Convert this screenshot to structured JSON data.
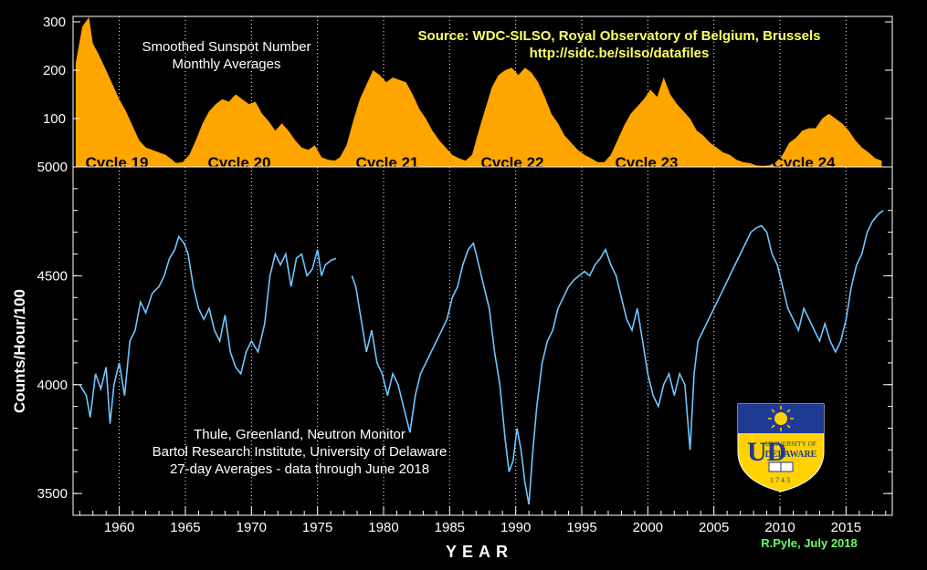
{
  "chart_data": [
    {
      "type": "area",
      "panel": "top",
      "title_lines": [
        "Smoothed Sunspot Number",
        "Monthly Averages"
      ],
      "source_lines": [
        "Source: WDC-SILSO, Royal Observatory of Belgium, Brussels",
        "http://sidc.be/silso/datafiles"
      ],
      "ylim": [
        0,
        300
      ],
      "yticks": [
        "300",
        "200",
        "100"
      ],
      "color": "#ffa500",
      "cycles": [
        "Cycle 19",
        "Cycle 20",
        "Cycle 21",
        "Cycle 22",
        "Cycle 23",
        "Cycle 24"
      ],
      "x": [
        1956.7,
        1957.2,
        1957.7,
        1958.0,
        1958.4,
        1959.0,
        1959.5,
        1960.0,
        1960.5,
        1961.0,
        1961.5,
        1962.0,
        1962.5,
        1963.0,
        1963.5,
        1964.0,
        1964.3,
        1964.8,
        1965.3,
        1965.8,
        1966.3,
        1966.8,
        1967.3,
        1967.8,
        1968.3,
        1968.8,
        1969.3,
        1969.8,
        1970.3,
        1970.8,
        1971.3,
        1971.8,
        1972.3,
        1972.8,
        1973.3,
        1973.8,
        1974.3,
        1974.8,
        1975.3,
        1975.8,
        1976.3,
        1976.7,
        1977.2,
        1977.7,
        1978.2,
        1978.7,
        1979.2,
        1979.7,
        1980.2,
        1980.7,
        1981.2,
        1981.7,
        1982.2,
        1982.7,
        1983.2,
        1983.7,
        1984.2,
        1984.7,
        1985.2,
        1985.7,
        1986.2,
        1986.7,
        1987.2,
        1987.7,
        1988.2,
        1988.7,
        1989.2,
        1989.7,
        1990.2,
        1990.7,
        1991.2,
        1991.7,
        1992.2,
        1992.7,
        1993.2,
        1993.7,
        1994.2,
        1994.7,
        1995.2,
        1995.7,
        1996.2,
        1996.7,
        1997.2,
        1997.7,
        1998.2,
        1998.7,
        1999.2,
        1999.7,
        2000.2,
        2000.7,
        2001.2,
        2001.7,
        2002.2,
        2002.7,
        2003.2,
        2003.7,
        2004.2,
        2004.7,
        2005.2,
        2005.7,
        2006.2,
        2006.7,
        2007.2,
        2007.7,
        2008.2,
        2008.7,
        2009.2,
        2009.7,
        2010.2,
        2010.7,
        2011.2,
        2011.7,
        2012.2,
        2012.7,
        2013.2,
        2013.7,
        2014.2,
        2014.7,
        2015.2,
        2015.7,
        2016.2,
        2016.7,
        2017.2,
        2017.7
      ],
      "values": [
        215,
        290,
        310,
        255,
        235,
        200,
        170,
        140,
        115,
        85,
        55,
        40,
        35,
        30,
        25,
        15,
        8,
        10,
        25,
        55,
        90,
        115,
        130,
        140,
        135,
        150,
        140,
        130,
        135,
        110,
        95,
        75,
        90,
        75,
        55,
        40,
        35,
        45,
        20,
        15,
        13,
        20,
        45,
        95,
        140,
        170,
        200,
        190,
        175,
        185,
        180,
        175,
        150,
        120,
        100,
        75,
        55,
        40,
        25,
        18,
        13,
        25,
        75,
        120,
        165,
        190,
        200,
        205,
        190,
        205,
        195,
        175,
        145,
        110,
        90,
        65,
        50,
        35,
        25,
        18,
        10,
        10,
        25,
        55,
        85,
        110,
        125,
        140,
        160,
        145,
        185,
        150,
        130,
        115,
        100,
        75,
        65,
        50,
        40,
        30,
        25,
        15,
        10,
        8,
        3,
        2,
        3,
        10,
        25,
        50,
        60,
        75,
        80,
        80,
        100,
        110,
        100,
        90,
        75,
        55,
        40,
        30,
        18,
        13
      ]
    },
    {
      "type": "line",
      "panel": "bottom",
      "title_lines": [
        "Thule, Greenland, Neutron Monitor",
        "Bartol Research Institute, University of Delaware",
        "27-day Averages - data through June 2018"
      ],
      "ylabel": "Counts/Hour/100",
      "xlabel": "YEAR",
      "ylim": [
        3400,
        5000
      ],
      "yticks": [
        "5000",
        "4500",
        "4000",
        "3500"
      ],
      "xlim": [
        1956.5,
        2018.5
      ],
      "xticks": [
        "1960",
        "1965",
        "1970",
        "1975",
        "1980",
        "1985",
        "1990",
        "1995",
        "2000",
        "2005",
        "2010",
        "2015"
      ],
      "color": "#6ec6ff",
      "segments": [
        {
          "x": [
            1957.0,
            1957.5,
            1957.8,
            1958.2,
            1958.6,
            1959.0,
            1959.3,
            1959.6,
            1960.0,
            1960.4,
            1960.8,
            1961.2,
            1961.6,
            1962.0,
            1962.5,
            1963.0,
            1963.4,
            1963.8,
            1964.2,
            1964.5,
            1964.9,
            1965.2,
            1965.6,
            1966.0,
            1966.4,
            1966.8,
            1967.2,
            1967.6,
            1968.0,
            1968.4,
            1968.8,
            1969.2,
            1969.6,
            1970.0,
            1970.5,
            1971.0,
            1971.4,
            1971.8,
            1972.2,
            1972.6,
            1973.0,
            1973.4,
            1973.8,
            1974.2,
            1974.6,
            1975.0,
            1975.3,
            1975.6,
            1976.0,
            1976.4
          ],
          "values": [
            4000,
            3950,
            3850,
            4050,
            3980,
            4080,
            3820,
            4000,
            4100,
            3950,
            4200,
            4250,
            4380,
            4330,
            4420,
            4450,
            4500,
            4580,
            4620,
            4680,
            4650,
            4600,
            4450,
            4350,
            4300,
            4350,
            4250,
            4200,
            4320,
            4150,
            4080,
            4050,
            4150,
            4200,
            4150,
            4280,
            4500,
            4600,
            4550,
            4600,
            4450,
            4580,
            4600,
            4500,
            4530,
            4620,
            4500,
            4550,
            4570,
            4580
          ]
        },
        {
          "x": [
            1977.6,
            1977.9,
            1978.3,
            1978.7,
            1979.1,
            1979.5,
            1979.9,
            1980.3,
            1980.7,
            1981.1,
            1981.5,
            1982.0,
            1982.4,
            1982.8,
            1983.2,
            1983.6,
            1984.0,
            1984.4,
            1984.8,
            1985.2,
            1985.6,
            1986.0,
            1986.4,
            1986.8,
            1987.2,
            1987.6,
            1988.0,
            1988.4,
            1988.8,
            1989.2,
            1989.5,
            1989.8,
            1990.1,
            1990.4,
            1990.7,
            1991.0,
            1991.3,
            1991.6,
            1992.0,
            1992.4,
            1992.8,
            1993.2,
            1993.6,
            1994.0,
            1994.4,
            1994.8,
            1995.2,
            1995.6,
            1996.0,
            1996.4,
            1996.8,
            1997.2,
            1997.6,
            1998.0,
            1998.4,
            1998.8,
            1999.2,
            1999.6,
            2000.0,
            2000.4,
            2000.8,
            2001.2,
            2001.6,
            2002.0,
            2002.4,
            2002.8,
            2003.2,
            2003.5,
            2003.8,
            2004.2,
            2004.6,
            2005.0,
            2005.4,
            2005.8,
            2006.2,
            2006.6,
            2007.0,
            2007.4,
            2007.8,
            2008.2,
            2008.6,
            2009.0,
            2009.4,
            2009.8,
            2010.2,
            2010.6,
            2011.0,
            2011.4,
            2011.8,
            2012.2,
            2012.6,
            2013.0,
            2013.4,
            2013.8,
            2014.2,
            2014.6,
            2015.0,
            2015.4,
            2015.8,
            2016.2,
            2016.6,
            2017.0,
            2017.4,
            2017.8
          ],
          "values": [
            4500,
            4450,
            4300,
            4150,
            4250,
            4100,
            4050,
            3950,
            4050,
            4000,
            3900,
            3780,
            3950,
            4050,
            4100,
            4150,
            4200,
            4250,
            4300,
            4400,
            4450,
            4550,
            4620,
            4650,
            4550,
            4450,
            4350,
            4150,
            4000,
            3750,
            3600,
            3650,
            3800,
            3700,
            3550,
            3450,
            3700,
            3900,
            4100,
            4200,
            4250,
            4350,
            4400,
            4450,
            4480,
            4500,
            4520,
            4500,
            4550,
            4580,
            4620,
            4550,
            4500,
            4400,
            4300,
            4250,
            4350,
            4200,
            4050,
            3950,
            3900,
            4000,
            4050,
            3950,
            4050,
            4000,
            3700,
            4050,
            4200,
            4250,
            4300,
            4350,
            4400,
            4450,
            4500,
            4550,
            4600,
            4650,
            4700,
            4720,
            4730,
            4700,
            4600,
            4550,
            4450,
            4350,
            4300,
            4250,
            4350,
            4300,
            4250,
            4200,
            4280,
            4200,
            4150,
            4200,
            4300,
            4450,
            4550,
            4600,
            4700,
            4750,
            4780,
            4800
          ]
        }
      ]
    }
  ],
  "logo": {
    "name": "University of Delaware",
    "top_line": "UNIVERSITY OF",
    "main_line": "DELAWARE",
    "year": "1743"
  },
  "credit": "R.Pyle, July 2018",
  "colors": {
    "sunspot_fill": "#ffa500",
    "neutron_line": "#6ec6ff",
    "source_text": "#ffff66",
    "credit_text": "#66ff66",
    "logo_blue": "#1f3a93",
    "logo_gold": "#ffd200"
  }
}
